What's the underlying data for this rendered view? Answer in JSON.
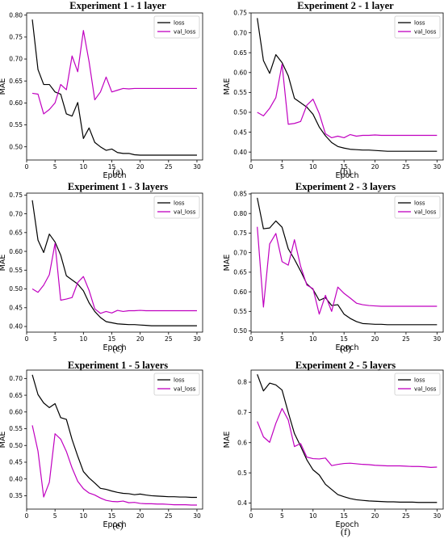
{
  "figure": {
    "background": "#ffffff"
  },
  "colors": {
    "loss": "#000000",
    "val_loss": "#c000c0"
  },
  "chart_data": [
    {
      "type": "line",
      "title": "Experiment 1 - 1 layer",
      "caption": "(a)",
      "xlabel": "Epoch",
      "ylabel": "MAE",
      "xlim": [
        0,
        31
      ],
      "ylim": [
        0.47,
        0.805
      ],
      "xticks": [
        0,
        5,
        10,
        15,
        20,
        25,
        30
      ],
      "yticks": [
        0.5,
        0.55,
        0.6,
        0.65,
        0.7,
        0.75,
        0.8
      ],
      "legend": "top-right",
      "x": [
        1,
        2,
        3,
        4,
        5,
        6,
        7,
        8,
        9,
        10,
        11,
        12,
        13,
        14,
        15,
        16,
        17,
        18,
        19,
        20,
        21,
        22,
        23,
        24,
        25,
        26,
        27,
        28,
        29,
        30
      ],
      "series": [
        {
          "name": "loss",
          "color": "#000000",
          "values": [
            0.79,
            0.676,
            0.642,
            0.642,
            0.625,
            0.62,
            0.575,
            0.57,
            0.601,
            0.519,
            0.543,
            0.51,
            0.5,
            0.492,
            0.495,
            0.487,
            0.485,
            0.485,
            0.482,
            0.481,
            0.481,
            0.481,
            0.481,
            0.481,
            0.481,
            0.481,
            0.481,
            0.481,
            0.481,
            0.481
          ]
        },
        {
          "name": "val_loss",
          "color": "#c000c0",
          "values": [
            0.622,
            0.62,
            0.575,
            0.585,
            0.6,
            0.642,
            0.63,
            0.707,
            0.671,
            0.765,
            0.694,
            0.607,
            0.625,
            0.659,
            0.625,
            0.629,
            0.633,
            0.632,
            0.633,
            0.633,
            0.633,
            0.633,
            0.633,
            0.633,
            0.633,
            0.633,
            0.633,
            0.633,
            0.633,
            0.633
          ]
        }
      ]
    },
    {
      "type": "line",
      "title": "Experiment 2 - 1 layer",
      "caption": "(b)",
      "xlabel": "Epoch",
      "ylabel": "MAE",
      "xlim": [
        0,
        31
      ],
      "ylim": [
        0.38,
        0.75
      ],
      "xticks": [
        0,
        5,
        10,
        15,
        20,
        25,
        30
      ],
      "yticks": [
        0.4,
        0.45,
        0.5,
        0.55,
        0.6,
        0.65,
        0.7,
        0.75
      ],
      "legend": "top-right",
      "x": [
        1,
        2,
        3,
        4,
        5,
        6,
        7,
        8,
        9,
        10,
        11,
        12,
        13,
        14,
        15,
        16,
        17,
        18,
        19,
        20,
        21,
        22,
        23,
        24,
        25,
        26,
        27,
        28,
        29,
        30
      ],
      "series": [
        {
          "name": "loss",
          "color": "#000000",
          "values": [
            0.737,
            0.63,
            0.598,
            0.645,
            0.625,
            0.592,
            0.535,
            0.524,
            0.513,
            0.495,
            0.463,
            0.441,
            0.424,
            0.414,
            0.41,
            0.407,
            0.406,
            0.405,
            0.405,
            0.404,
            0.403,
            0.402,
            0.402,
            0.402,
            0.402,
            0.402,
            0.402,
            0.402,
            0.402,
            0.402
          ]
        },
        {
          "name": "val_loss",
          "color": "#c000c0",
          "values": [
            0.5,
            0.491,
            0.51,
            0.537,
            0.621,
            0.47,
            0.472,
            0.477,
            0.518,
            0.533,
            0.497,
            0.446,
            0.436,
            0.44,
            0.436,
            0.444,
            0.44,
            0.442,
            0.442,
            0.443,
            0.442,
            0.442,
            0.442,
            0.442,
            0.442,
            0.442,
            0.442,
            0.442,
            0.442,
            0.442
          ]
        }
      ]
    },
    {
      "type": "line",
      "title": "Experiment 1 - 3 layers",
      "caption": "(c)",
      "xlabel": "Epoch",
      "ylabel": "MAE",
      "xlim": [
        0,
        31
      ],
      "ylim": [
        0.385,
        0.755
      ],
      "xticks": [
        0,
        5,
        10,
        15,
        20,
        25,
        30
      ],
      "yticks": [
        0.4,
        0.45,
        0.5,
        0.55,
        0.6,
        0.65,
        0.7,
        0.75
      ],
      "legend": "top-right",
      "x": [
        1,
        2,
        3,
        4,
        5,
        6,
        7,
        8,
        9,
        10,
        11,
        12,
        13,
        14,
        15,
        16,
        17,
        18,
        19,
        20,
        21,
        22,
        23,
        24,
        25,
        26,
        27,
        28,
        29,
        30
      ],
      "series": [
        {
          "name": "loss",
          "color": "#000000",
          "values": [
            0.736,
            0.63,
            0.597,
            0.646,
            0.625,
            0.59,
            0.535,
            0.524,
            0.513,
            0.495,
            0.463,
            0.44,
            0.424,
            0.413,
            0.41,
            0.407,
            0.406,
            0.405,
            0.405,
            0.404,
            0.403,
            0.402,
            0.402,
            0.402,
            0.402,
            0.402,
            0.402,
            0.402,
            0.402,
            0.402
          ]
        },
        {
          "name": "val_loss",
          "color": "#c000c0",
          "values": [
            0.5,
            0.491,
            0.51,
            0.538,
            0.621,
            0.47,
            0.473,
            0.477,
            0.517,
            0.533,
            0.496,
            0.447,
            0.435,
            0.44,
            0.436,
            0.443,
            0.44,
            0.442,
            0.442,
            0.443,
            0.442,
            0.442,
            0.442,
            0.442,
            0.442,
            0.442,
            0.442,
            0.442,
            0.442,
            0.442
          ]
        }
      ]
    },
    {
      "type": "line",
      "title": "Experiment 2 - 3 layers",
      "caption": "(d)",
      "xlabel": "Epoch",
      "ylabel": "MAE",
      "xlim": [
        0,
        31
      ],
      "ylim": [
        0.497,
        0.852
      ],
      "xticks": [
        0,
        5,
        10,
        15,
        20,
        25,
        30
      ],
      "yticks": [
        0.5,
        0.55,
        0.6,
        0.65,
        0.7,
        0.75,
        0.8,
        0.85
      ],
      "legend": "top-right",
      "x": [
        1,
        2,
        3,
        4,
        5,
        6,
        7,
        8,
        9,
        10,
        11,
        12,
        13,
        14,
        15,
        16,
        17,
        18,
        19,
        20,
        21,
        22,
        23,
        24,
        25,
        26,
        27,
        28,
        29,
        30
      ],
      "series": [
        {
          "name": "loss",
          "color": "#000000",
          "values": [
            0.84,
            0.761,
            0.763,
            0.781,
            0.765,
            0.71,
            0.683,
            0.653,
            0.62,
            0.606,
            0.578,
            0.585,
            0.565,
            0.567,
            0.543,
            0.532,
            0.524,
            0.519,
            0.518,
            0.517,
            0.517,
            0.516,
            0.516,
            0.516,
            0.516,
            0.516,
            0.516,
            0.516,
            0.516,
            0.516
          ]
        },
        {
          "name": "val_loss",
          "color": "#c000c0",
          "values": [
            0.766,
            0.561,
            0.722,
            0.749,
            0.677,
            0.668,
            0.733,
            0.665,
            0.617,
            0.608,
            0.543,
            0.591,
            0.55,
            0.612,
            0.596,
            0.584,
            0.571,
            0.567,
            0.565,
            0.564,
            0.563,
            0.563,
            0.563,
            0.563,
            0.563,
            0.563,
            0.563,
            0.563,
            0.563,
            0.563
          ]
        }
      ]
    },
    {
      "type": "line",
      "title": "Experiment 1 - 5 layers",
      "caption": "(e)",
      "xlabel": "Epoch",
      "ylabel": "MAE",
      "xlim": [
        0,
        31
      ],
      "ylim": [
        0.31,
        0.725
      ],
      "xticks": [
        0,
        5,
        10,
        15,
        20,
        25,
        30
      ],
      "yticks": [
        0.35,
        0.4,
        0.45,
        0.5,
        0.55,
        0.6,
        0.65,
        0.7
      ],
      "legend": "top-right",
      "x": [
        1,
        2,
        3,
        4,
        5,
        6,
        7,
        8,
        9,
        10,
        11,
        12,
        13,
        14,
        15,
        16,
        17,
        18,
        19,
        20,
        21,
        22,
        23,
        24,
        25,
        26,
        27,
        28,
        29,
        30
      ],
      "series": [
        {
          "name": "loss",
          "color": "#000000",
          "values": [
            0.711,
            0.652,
            0.627,
            0.613,
            0.625,
            0.583,
            0.578,
            0.518,
            0.468,
            0.422,
            0.403,
            0.388,
            0.372,
            0.369,
            0.364,
            0.36,
            0.357,
            0.356,
            0.353,
            0.355,
            0.352,
            0.35,
            0.349,
            0.348,
            0.347,
            0.347,
            0.346,
            0.346,
            0.345,
            0.345
          ]
        },
        {
          "name": "val_loss",
          "color": "#c000c0",
          "values": [
            0.56,
            0.483,
            0.346,
            0.39,
            0.535,
            0.519,
            0.482,
            0.433,
            0.393,
            0.371,
            0.358,
            0.352,
            0.343,
            0.336,
            0.333,
            0.332,
            0.334,
            0.329,
            0.33,
            0.327,
            0.326,
            0.326,
            0.325,
            0.325,
            0.324,
            0.323,
            0.323,
            0.323,
            0.322,
            0.322
          ]
        }
      ]
    },
    {
      "type": "line",
      "title": "Experiment 2 - 5 layers",
      "caption": "(f)",
      "xlabel": "Epoch",
      "ylabel": "MAE",
      "xlim": [
        0,
        31
      ],
      "ylim": [
        0.38,
        0.84
      ],
      "xticks": [
        0,
        5,
        10,
        15,
        20,
        25,
        30
      ],
      "yticks": [
        0.4,
        0.5,
        0.6,
        0.7,
        0.8
      ],
      "legend": "top-right",
      "x": [
        1,
        2,
        3,
        4,
        5,
        6,
        7,
        8,
        9,
        10,
        11,
        12,
        13,
        14,
        15,
        16,
        17,
        18,
        19,
        20,
        21,
        22,
        23,
        24,
        25,
        26,
        27,
        28,
        29,
        30
      ],
      "series": [
        {
          "name": "loss",
          "color": "#000000",
          "values": [
            0.826,
            0.771,
            0.797,
            0.791,
            0.774,
            0.7,
            0.63,
            0.588,
            0.543,
            0.51,
            0.493,
            0.462,
            0.445,
            0.428,
            0.421,
            0.415,
            0.411,
            0.409,
            0.407,
            0.406,
            0.405,
            0.404,
            0.404,
            0.403,
            0.403,
            0.403,
            0.402,
            0.402,
            0.402,
            0.402
          ]
        },
        {
          "name": "val_loss",
          "color": "#c000c0",
          "values": [
            0.67,
            0.619,
            0.601,
            0.664,
            0.713,
            0.675,
            0.587,
            0.597,
            0.552,
            0.547,
            0.546,
            0.549,
            0.524,
            0.528,
            0.531,
            0.532,
            0.53,
            0.528,
            0.527,
            0.525,
            0.524,
            0.523,
            0.523,
            0.523,
            0.522,
            0.521,
            0.521,
            0.52,
            0.518,
            0.519
          ]
        }
      ]
    }
  ]
}
